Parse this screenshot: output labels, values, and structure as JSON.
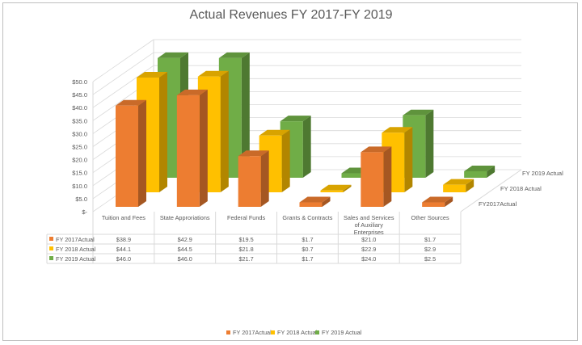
{
  "chart_data": {
    "type": "bar",
    "subtype": "3d-clustered-column-with-data-table",
    "title": "Actual Revenues FY 2017-FY 2019",
    "categories": [
      "Tuition and Fees",
      "State Approriations",
      "Federal Funds",
      "Grants & Contracts",
      "Sales and Services of Auxiliary Enterprises",
      "Other Sources"
    ],
    "series": [
      {
        "name": "FY 2017Actual",
        "color": "#ED7D31",
        "values": [
          38.9,
          42.9,
          19.5,
          1.7,
          21.0,
          1.7
        ],
        "labels": [
          "$38.9",
          "$42.9",
          "$19.5",
          "$1.7",
          "$21.0",
          "$1.7"
        ]
      },
      {
        "name": "FY 2018 Actual",
        "color": "#FFC000",
        "values": [
          44.1,
          44.5,
          21.8,
          0.7,
          22.9,
          2.9
        ],
        "labels": [
          "$44.1",
          "$44.5",
          "$21.8",
          "$0.7",
          "$22.9",
          "$2.9"
        ]
      },
      {
        "name": "FY 2019 Actual",
        "color": "#70AD47",
        "values": [
          46.0,
          46.0,
          21.7,
          1.7,
          24.0,
          2.5
        ],
        "labels": [
          "$46.0",
          "$46.0",
          "$21.7",
          "$1.7",
          "$24.0",
          "$2.5"
        ]
      }
    ],
    "depth_labels": [
      "FY2017Actual",
      "FY 2018 Actual",
      "FY 2019 Actual"
    ],
    "yticks": [
      "$-",
      "$5.0",
      "$10.0",
      "$15.0",
      "$20.0",
      "$25.0",
      "$30.0",
      "$35.0",
      "$40.0",
      "$45.0",
      "$50.0"
    ],
    "ylim": [
      0,
      50
    ],
    "grid": true,
    "legend": "bottom"
  }
}
